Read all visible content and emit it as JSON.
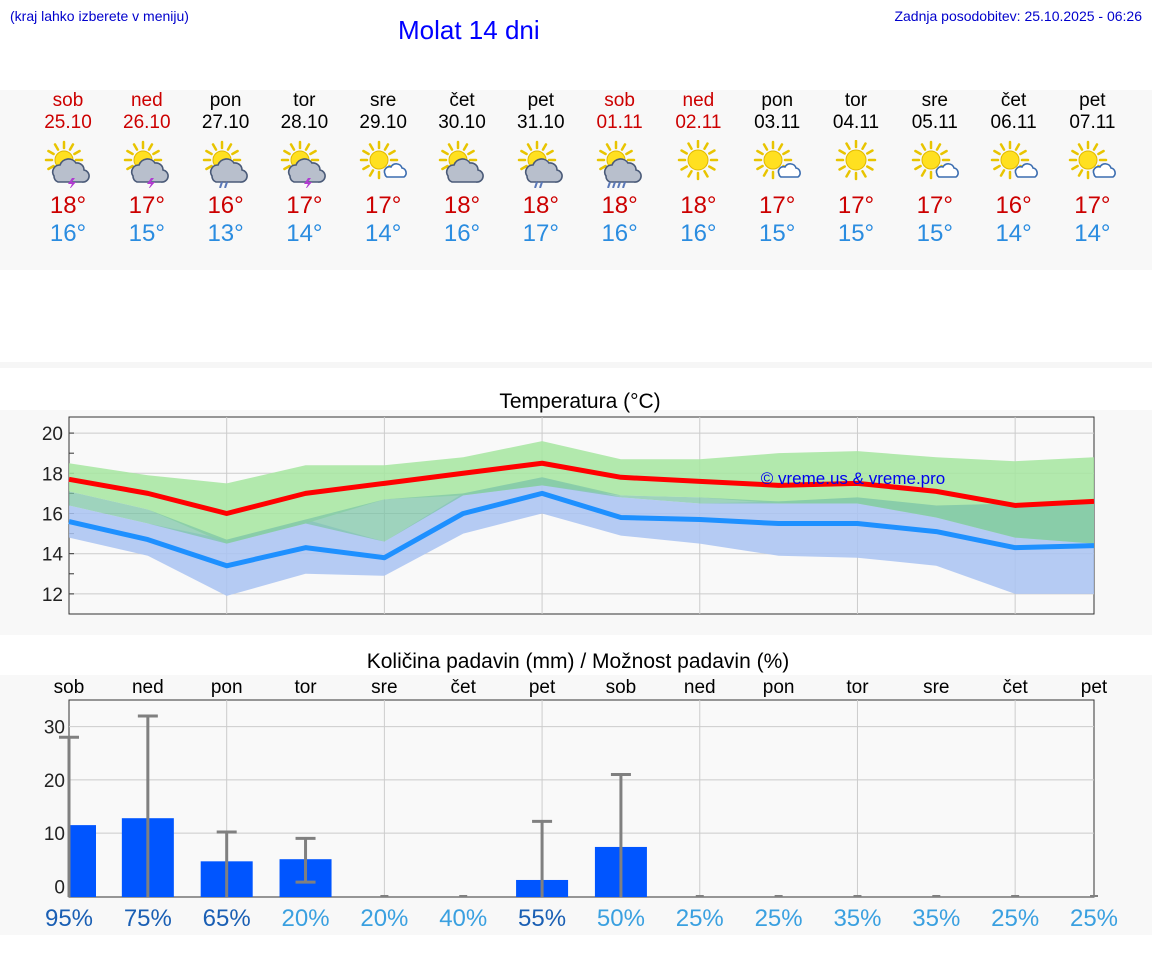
{
  "header": {
    "hint": "(kraj lahko izberete v meniju)",
    "title": "Molat 14 dni",
    "updated": "Zadnja posodobitev: 25.10.2025 - 06:26"
  },
  "colors": {
    "weekend": "#cc0000",
    "weekday": "#000000",
    "max": "#cc0000",
    "min": "#2a8ce0",
    "max_line": "#ff0000",
    "min_line": "#1e90ff",
    "max_band": "#a6e6a0",
    "min_band": "#a9c3f2",
    "overlap_band": "#7fc6a8",
    "precip_bar": "#0055ff",
    "errbar": "#808080",
    "prob_high": "#1a5fb4",
    "prob_low": "#3aa0e0"
  },
  "days": [
    {
      "name": "sob",
      "date": "25.10",
      "weekend": true,
      "icon": "sun-cloud-storm-icon",
      "max": "18°",
      "min": "16°"
    },
    {
      "name": "ned",
      "date": "26.10",
      "weekend": true,
      "icon": "sun-cloud-storm-icon",
      "max": "17°",
      "min": "15°"
    },
    {
      "name": "pon",
      "date": "27.10",
      "weekend": false,
      "icon": "sun-cloud-rain-icon",
      "max": "16°",
      "min": "13°"
    },
    {
      "name": "tor",
      "date": "28.10",
      "weekend": false,
      "icon": "sun-cloud-storm-icon",
      "max": "17°",
      "min": "14°"
    },
    {
      "name": "sre",
      "date": "29.10",
      "weekend": false,
      "icon": "sun-small-cloud-icon",
      "max": "17°",
      "min": "14°"
    },
    {
      "name": "čet",
      "date": "30.10",
      "weekend": false,
      "icon": "sun-cloud-icon",
      "max": "18°",
      "min": "16°"
    },
    {
      "name": "pet",
      "date": "31.10",
      "weekend": false,
      "icon": "sun-cloud-rain-icon",
      "max": "18°",
      "min": "17°"
    },
    {
      "name": "sob",
      "date": "01.11",
      "weekend": true,
      "icon": "sun-cloud-heavy-rain-icon",
      "max": "18°",
      "min": "16°"
    },
    {
      "name": "ned",
      "date": "02.11",
      "weekend": true,
      "icon": "sun-icon",
      "max": "18°",
      "min": "16°"
    },
    {
      "name": "pon",
      "date": "03.11",
      "weekend": false,
      "icon": "sun-small-cloud-icon",
      "max": "17°",
      "min": "15°"
    },
    {
      "name": "tor",
      "date": "04.11",
      "weekend": false,
      "icon": "sun-icon",
      "max": "17°",
      "min": "15°"
    },
    {
      "name": "sre",
      "date": "05.11",
      "weekend": false,
      "icon": "sun-small-cloud-icon",
      "max": "17°",
      "min": "15°"
    },
    {
      "name": "čet",
      "date": "06.11",
      "weekend": false,
      "icon": "sun-small-cloud-icon",
      "max": "16°",
      "min": "14°"
    },
    {
      "name": "pet",
      "date": "07.11",
      "weekend": false,
      "icon": "sun-small-cloud-icon",
      "max": "17°",
      "min": "14°"
    }
  ],
  "chart_data": [
    {
      "type": "line",
      "title": "Temperatura (°C)",
      "watermark": "© vreme.us & vreme.pro",
      "ylim": [
        11,
        20.8
      ],
      "yticks": [
        12,
        14,
        16,
        18,
        20
      ],
      "grid": true,
      "x": [
        0,
        1,
        2,
        3,
        4,
        5,
        6,
        7,
        8,
        9,
        10,
        11,
        12,
        13
      ],
      "series": [
        {
          "name": "max",
          "values": [
            17.7,
            17.0,
            16.0,
            17.0,
            17.5,
            18.0,
            18.5,
            17.8,
            17.6,
            17.4,
            17.5,
            17.1,
            16.4,
            16.6
          ],
          "low": [
            17.1,
            16.2,
            14.5,
            15.5,
            16.7,
            16.9,
            17.4,
            16.9,
            16.8,
            16.5,
            16.5,
            15.8,
            14.8,
            14.5
          ],
          "high": [
            18.5,
            17.9,
            17.5,
            18.4,
            18.4,
            18.8,
            19.6,
            18.7,
            18.7,
            19.0,
            19.1,
            18.8,
            18.6,
            18.8
          ]
        },
        {
          "name": "min",
          "values": [
            15.6,
            14.7,
            13.4,
            14.3,
            13.8,
            16.0,
            17.0,
            15.8,
            15.7,
            15.5,
            15.5,
            15.1,
            14.3,
            14.4
          ],
          "low": [
            14.8,
            13.9,
            11.9,
            13.0,
            12.9,
            15.0,
            16.0,
            14.9,
            14.5,
            13.9,
            13.8,
            13.4,
            12.0,
            12.0
          ],
          "high": [
            16.4,
            15.5,
            14.7,
            15.7,
            14.6,
            17.0,
            17.8,
            16.8,
            16.5,
            16.6,
            16.8,
            16.4,
            16.5,
            16.6
          ]
        }
      ]
    },
    {
      "type": "bar",
      "title": "Količina padavin (mm) / Možnost padavin (%)",
      "categories": [
        "sob",
        "ned",
        "pon",
        "tor",
        "sre",
        "čet",
        "pet",
        "sob",
        "ned",
        "pon",
        "tor",
        "sre",
        "čet",
        "pet"
      ],
      "ylim": [
        -2,
        35
      ],
      "yticks": [
        0,
        10,
        20,
        30
      ],
      "values": [
        11.5,
        12.8,
        4.7,
        5.1,
        0,
        0,
        1.2,
        7.4,
        0,
        0,
        0,
        0,
        0,
        0
      ],
      "err_low": [
        0,
        0,
        0,
        0.8,
        0,
        0,
        0,
        0,
        0,
        0,
        0,
        0,
        0,
        0
      ],
      "err_high": [
        28,
        32,
        10.2,
        9,
        0,
        0,
        12.2,
        21,
        0,
        0,
        0,
        0,
        0,
        0
      ],
      "probability": [
        "95%",
        "75%",
        "65%",
        "20%",
        "20%",
        "40%",
        "55%",
        "50%",
        "25%",
        "25%",
        "35%",
        "35%",
        "25%",
        "25%"
      ],
      "probability_high": [
        true,
        true,
        true,
        false,
        false,
        false,
        true,
        false,
        false,
        false,
        false,
        false,
        false,
        false
      ]
    }
  ]
}
